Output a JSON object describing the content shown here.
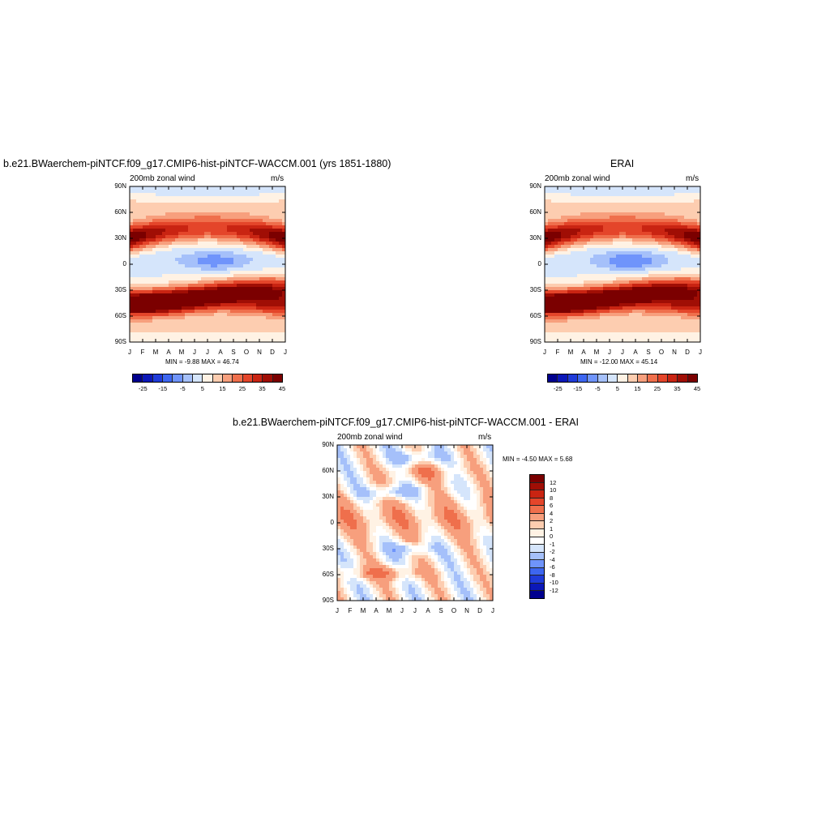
{
  "colors": {
    "main_scale": [
      "#00008e",
      "#0b18b8",
      "#1f3bd9",
      "#3d66f0",
      "#6f94fb",
      "#a5c0fa",
      "#d5e5fb",
      "#fff2e4",
      "#fdcdb0",
      "#f79f7d",
      "#ef6f4c",
      "#e4452a",
      "#c92412",
      "#a00e05",
      "#7b0000"
    ],
    "diff_scale": [
      "#00008e",
      "#0b18b8",
      "#1f3bd9",
      "#3d66f0",
      "#6f94fb",
      "#a5c0fa",
      "#d5e5fb",
      "#ffffff",
      "#fff2e4",
      "#fdcdb0",
      "#f79f7d",
      "#ef6f4c",
      "#e4452a",
      "#c92412",
      "#a00e05",
      "#7b0000"
    ]
  },
  "panels": {
    "model": {
      "title": "b.e21.BWaerchem-piNTCF.f09_g17.CMIP6-hist-piNTCF-WACCM.001 (yrs 1851-1880)",
      "left_label": "200mb zonal wind",
      "right_label": "m/s",
      "minmax": "MIN =  -9.88 MAX =  46.74"
    },
    "obs": {
      "title": "ERAI",
      "left_label": "200mb zonal wind",
      "right_label": "m/s",
      "minmax": "MIN = -12.00 MAX =  45.14"
    },
    "diff": {
      "title": "b.e21.BWaerchem-piNTCF.f09_g17.CMIP6-hist-piNTCF-WACCM.001 - ERAI",
      "left_label": "200mb zonal wind",
      "right_label": "m/s",
      "minmax": "MIN =  -4.50 MAX =   5.68"
    }
  },
  "axes": {
    "lat_ticks": [
      "90N",
      "60N",
      "30N",
      "0",
      "30S",
      "60S",
      "90S"
    ],
    "month_ticks": [
      "J",
      "F",
      "M",
      "A",
      "M",
      "J",
      "J",
      "A",
      "S",
      "O",
      "N",
      "D",
      "J"
    ]
  },
  "colorbars": {
    "main_labels": [
      "-25",
      "-15",
      "-5",
      "5",
      "15",
      "25",
      "35",
      "45"
    ],
    "diff_labels": [
      "12",
      "10",
      "8",
      "6",
      "4",
      "2",
      "1",
      "0",
      "-1",
      "-2",
      "-4",
      "-6",
      "-8",
      "-10",
      "-12"
    ]
  },
  "chart_data": [
    {
      "type": "heatmap",
      "title": "b.e21.BWaerchem-piNTCF.f09_g17.CMIP6-hist-piNTCF-WACCM.001 (yrs 1851-1880)",
      "subtitle": "200mb zonal wind",
      "units": "m/s",
      "x": [
        "J",
        "F",
        "M",
        "A",
        "M",
        "J",
        "J",
        "A",
        "S",
        "O",
        "N",
        "D",
        "J"
      ],
      "y": [
        "90N",
        "60N",
        "30N",
        "0",
        "30S",
        "60S",
        "90S"
      ],
      "min": -9.88,
      "max": 46.74,
      "levels": [
        -30,
        -25,
        -20,
        -15,
        -10,
        -5,
        0,
        5,
        10,
        15,
        20,
        25,
        30,
        35,
        40,
        45
      ]
    },
    {
      "type": "heatmap",
      "title": "ERAI",
      "subtitle": "200mb zonal wind",
      "units": "m/s",
      "x": [
        "J",
        "F",
        "M",
        "A",
        "M",
        "J",
        "J",
        "A",
        "S",
        "O",
        "N",
        "D",
        "J"
      ],
      "y": [
        "90N",
        "60N",
        "30N",
        "0",
        "30S",
        "60S",
        "90S"
      ],
      "min": -12.0,
      "max": 45.14,
      "levels": [
        -30,
        -25,
        -20,
        -15,
        -10,
        -5,
        0,
        5,
        10,
        15,
        20,
        25,
        30,
        35,
        40,
        45
      ]
    },
    {
      "type": "heatmap",
      "title": "b.e21.BWaerchem-piNTCF.f09_g17.CMIP6-hist-piNTCF-WACCM.001 - ERAI",
      "subtitle": "200mb zonal wind",
      "units": "m/s",
      "x": [
        "J",
        "F",
        "M",
        "A",
        "M",
        "J",
        "J",
        "A",
        "S",
        "O",
        "N",
        "D",
        "J"
      ],
      "y": [
        "90N",
        "60N",
        "30N",
        "0",
        "30S",
        "60S",
        "90S"
      ],
      "min": -4.5,
      "max": 5.68,
      "levels": [
        -12,
        -10,
        -8,
        -6,
        -4,
        -2,
        -1,
        0,
        1,
        2,
        4,
        6,
        8,
        10,
        12
      ]
    }
  ]
}
